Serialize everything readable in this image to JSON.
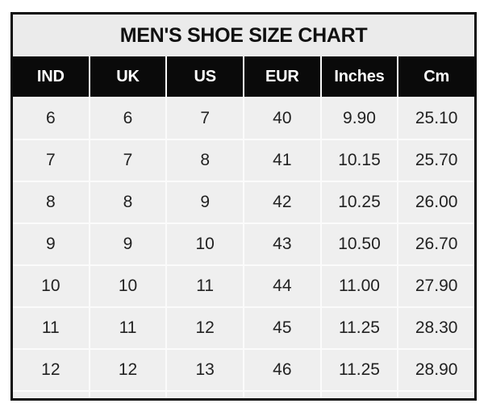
{
  "title": "MEN'S SHOE SIZE CHART",
  "colors": {
    "page_bg": "#ffffff",
    "border": "#0c0c0c",
    "title_bg": "#ebebeb",
    "header_bg": "#0a0a0a",
    "header_text": "#ffffff",
    "cell_bg": "#efefef",
    "grid_line": "#fbfbfb",
    "cell_text": "#222222",
    "title_text": "#111111"
  },
  "chart_data": {
    "type": "table",
    "title": "MEN'S SHOE SIZE CHART",
    "columns": [
      "IND",
      "UK",
      "US",
      "EUR",
      "Inches",
      "Cm"
    ],
    "rows": [
      [
        "6",
        "6",
        "7",
        "40",
        "9.90",
        "25.10"
      ],
      [
        "7",
        "7",
        "8",
        "41",
        "10.15",
        "25.70"
      ],
      [
        "8",
        "8",
        "9",
        "42",
        "10.25",
        "26.00"
      ],
      [
        "9",
        "9",
        "10",
        "43",
        "10.50",
        "26.70"
      ],
      [
        "10",
        "10",
        "11",
        "44",
        "11.00",
        "27.90"
      ],
      [
        "11",
        "11",
        "12",
        "45",
        "11.25",
        "28.30"
      ],
      [
        "12",
        "12",
        "13",
        "46",
        "11.25",
        "28.90"
      ]
    ],
    "layout": {
      "grid": true,
      "header_style": "black-bar",
      "title_position": "top-center"
    }
  }
}
